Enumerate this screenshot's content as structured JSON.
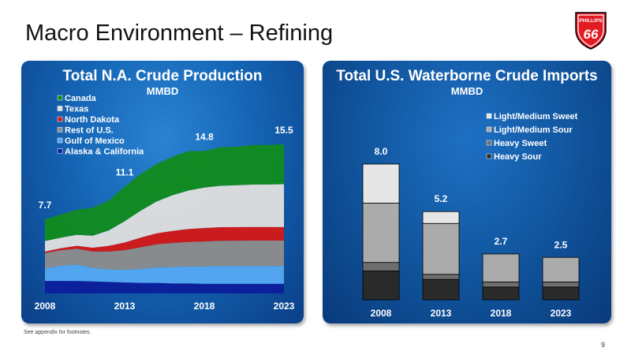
{
  "slide": {
    "title": "Macro Environment – Refining",
    "footnote": "See appendix for footnotes.",
    "page_number": "9",
    "logo": {
      "line1": "PHILLIPS",
      "line2": "66"
    }
  },
  "chart_data": [
    {
      "type": "area",
      "title": "Total N.A. Crude Production",
      "subtitle": "MMBD",
      "x": [
        2008,
        2009,
        2010,
        2011,
        2012,
        2013,
        2014,
        2015,
        2016,
        2017,
        2018,
        2019,
        2020,
        2021,
        2022,
        2023
      ],
      "x_tick_labels": [
        "2008",
        "2013",
        "2018",
        "2023"
      ],
      "stacked": true,
      "series": [
        {
          "name": "Alaska & California",
          "color": "#0b1f9a",
          "values": [
            1.3,
            1.3,
            1.3,
            1.25,
            1.2,
            1.15,
            1.1,
            1.1,
            1.05,
            1.05,
            1.0,
            1.0,
            1.0,
            1.0,
            1.0,
            1.0
          ]
        },
        {
          "name": "Gulf of Mexico",
          "color": "#55a7f2",
          "values": [
            1.3,
            1.6,
            1.7,
            1.4,
            1.3,
            1.3,
            1.45,
            1.6,
            1.7,
            1.75,
            1.8,
            1.85,
            1.85,
            1.85,
            1.85,
            1.85
          ]
        },
        {
          "name": "Rest of U.S.",
          "color": "#8c8c8c",
          "values": [
            1.6,
            1.6,
            1.65,
            1.7,
            1.85,
            2.05,
            2.25,
            2.4,
            2.5,
            2.55,
            2.6,
            2.62,
            2.63,
            2.64,
            2.64,
            2.65
          ]
        },
        {
          "name": "North Dakota",
          "color": "#d11a1a",
          "values": [
            0.15,
            0.2,
            0.3,
            0.4,
            0.6,
            0.8,
            1.0,
            1.15,
            1.25,
            1.35,
            1.4,
            1.42,
            1.42,
            1.42,
            1.42,
            1.4
          ]
        },
        {
          "name": "Texas",
          "color": "#dedede",
          "values": [
            1.1,
            1.1,
            1.15,
            1.25,
            1.6,
            2.2,
            2.8,
            3.3,
            3.7,
            4.0,
            4.2,
            4.3,
            4.35,
            4.4,
            4.42,
            4.45
          ]
        },
        {
          "name": "Canada",
          "color": "#128a1f",
          "values": [
            2.25,
            2.4,
            2.6,
            2.9,
            3.1,
            3.6,
            3.8,
            3.9,
            4.0,
            4.1,
            3.8,
            4.0,
            4.0,
            4.1,
            4.1,
            4.15
          ]
        }
      ],
      "totals": [
        7.7,
        8.2,
        8.7,
        8.9,
        9.65,
        11.1,
        12.4,
        13.45,
        14.2,
        14.8,
        14.8,
        15.19,
        15.25,
        15.41,
        15.43,
        15.5
      ],
      "data_labels": [
        {
          "x": 2008,
          "text": "7.7"
        },
        {
          "x": 2013,
          "text": "11.1"
        },
        {
          "x": 2018,
          "text": "14.8"
        },
        {
          "x": 2023,
          "text": "15.5"
        }
      ],
      "legend": [
        "Canada",
        "Texas",
        "North Dakota",
        "Rest of U.S.",
        "Gulf of Mexico",
        "Alaska & California"
      ],
      "legend_position": "top-left",
      "ylim": [
        0,
        17
      ],
      "grid": false
    },
    {
      "type": "bar",
      "stacked": true,
      "title": "Total U.S. Waterborne Crude Imports",
      "subtitle": "MMBD",
      "categories": [
        "2008",
        "2013",
        "2018",
        "2023"
      ],
      "series": [
        {
          "name": "Heavy Sour",
          "color": "#2a2a2a",
          "values": [
            1.7,
            1.2,
            0.75,
            0.75
          ]
        },
        {
          "name": "Heavy Sweet",
          "color": "#6e6e6e",
          "values": [
            0.5,
            0.3,
            0.3,
            0.3
          ]
        },
        {
          "name": "Light/Medium Sour",
          "color": "#ababab",
          "values": [
            3.5,
            3.0,
            1.65,
            1.45
          ]
        },
        {
          "name": "Light/Medium Sweet",
          "color": "#e6e6e6",
          "values": [
            2.3,
            0.7,
            0.0,
            0.0
          ]
        }
      ],
      "totals": [
        8.0,
        5.2,
        2.7,
        2.5
      ],
      "data_labels": [
        "8.0",
        "5.2",
        "2.7",
        "2.5"
      ],
      "legend": [
        "Light/Medium Sweet",
        "Light/Medium Sour",
        "Heavy Sweet",
        "Heavy Sour"
      ],
      "legend_position": "top-right",
      "ylim": [
        0,
        9
      ],
      "grid": false
    }
  ]
}
